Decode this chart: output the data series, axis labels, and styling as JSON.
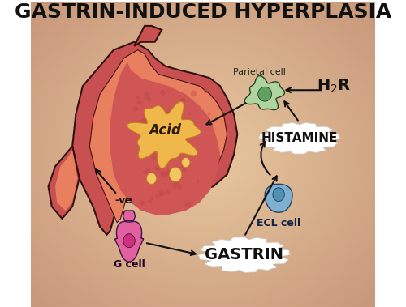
{
  "title": "GASTRIN-INDUCED HYPERPLASIA",
  "bg_color": "#C8977A",
  "bg_gradient_center": "#E8C9A0",
  "stomach_outer_color": "#C85050",
  "stomach_inner_color": "#D96060",
  "stomach_lining_color": "#E07070",
  "stomach_mucosa_color": "#CC4444",
  "acid_blob_color": "#F0B84A",
  "acid_label": "Acid",
  "g_cell_outer_color": "#E060A0",
  "g_cell_inner_color": "#D03080",
  "g_cell_label": "G cell",
  "ecl_cell_outer_color": "#80B0D0",
  "ecl_cell_inner_color": "#5090B0",
  "ecl_cell_label": "ECL cell",
  "parietal_cell_outer_color": "#B0D4A0",
  "parietal_cell_inner_color": "#60A060",
  "parietal_cell_label": "Parietal cell",
  "gastrin_label": "GASTRIN",
  "histamine_label": "HISTAMINE",
  "h2r_label": "H₂R",
  "neg_feedback_label": "-ve",
  "cloud_color": "#FFFFFF",
  "arrow_color": "#111111",
  "title_fontsize": 18,
  "label_fontsize": 10
}
